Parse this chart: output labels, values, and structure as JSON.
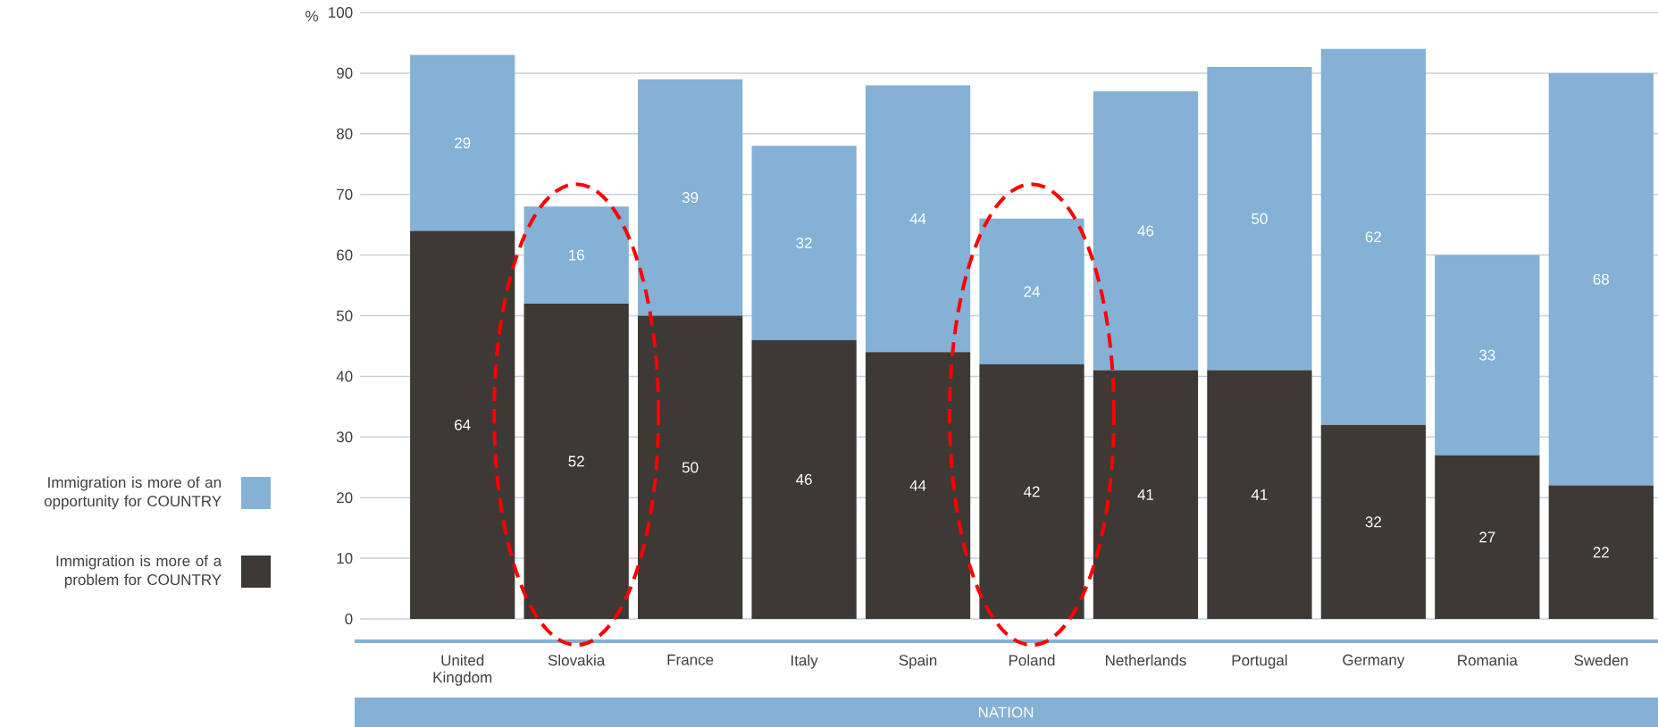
{
  "chart_data": {
    "type": "bar",
    "stacked": true,
    "ylabel": "%",
    "xlabel": "NATION",
    "categories": [
      "United Kingdom",
      "Slovakia",
      "France",
      "Italy",
      "Spain",
      "Poland",
      "Netherlands",
      "Portugal",
      "Germany",
      "Romania",
      "Sweden"
    ],
    "series": [
      {
        "name": "Immigration is more of a problem for COUNTRY",
        "color": "#3d3935",
        "values": [
          64,
          52,
          50,
          46,
          44,
          42,
          41,
          41,
          32,
          27,
          22
        ]
      },
      {
        "name": "Immigration is more of an opportunity for COUNTRY",
        "color": "#84b1d5",
        "values": [
          29,
          16,
          39,
          32,
          44,
          24,
          46,
          50,
          62,
          33,
          68
        ]
      }
    ],
    "ylim": [
      0,
      100
    ],
    "yticks": [
      0,
      10,
      20,
      30,
      40,
      50,
      60,
      70,
      80,
      90,
      100
    ],
    "grid": "y",
    "legend": "left",
    "data_labels": true
  }
}
